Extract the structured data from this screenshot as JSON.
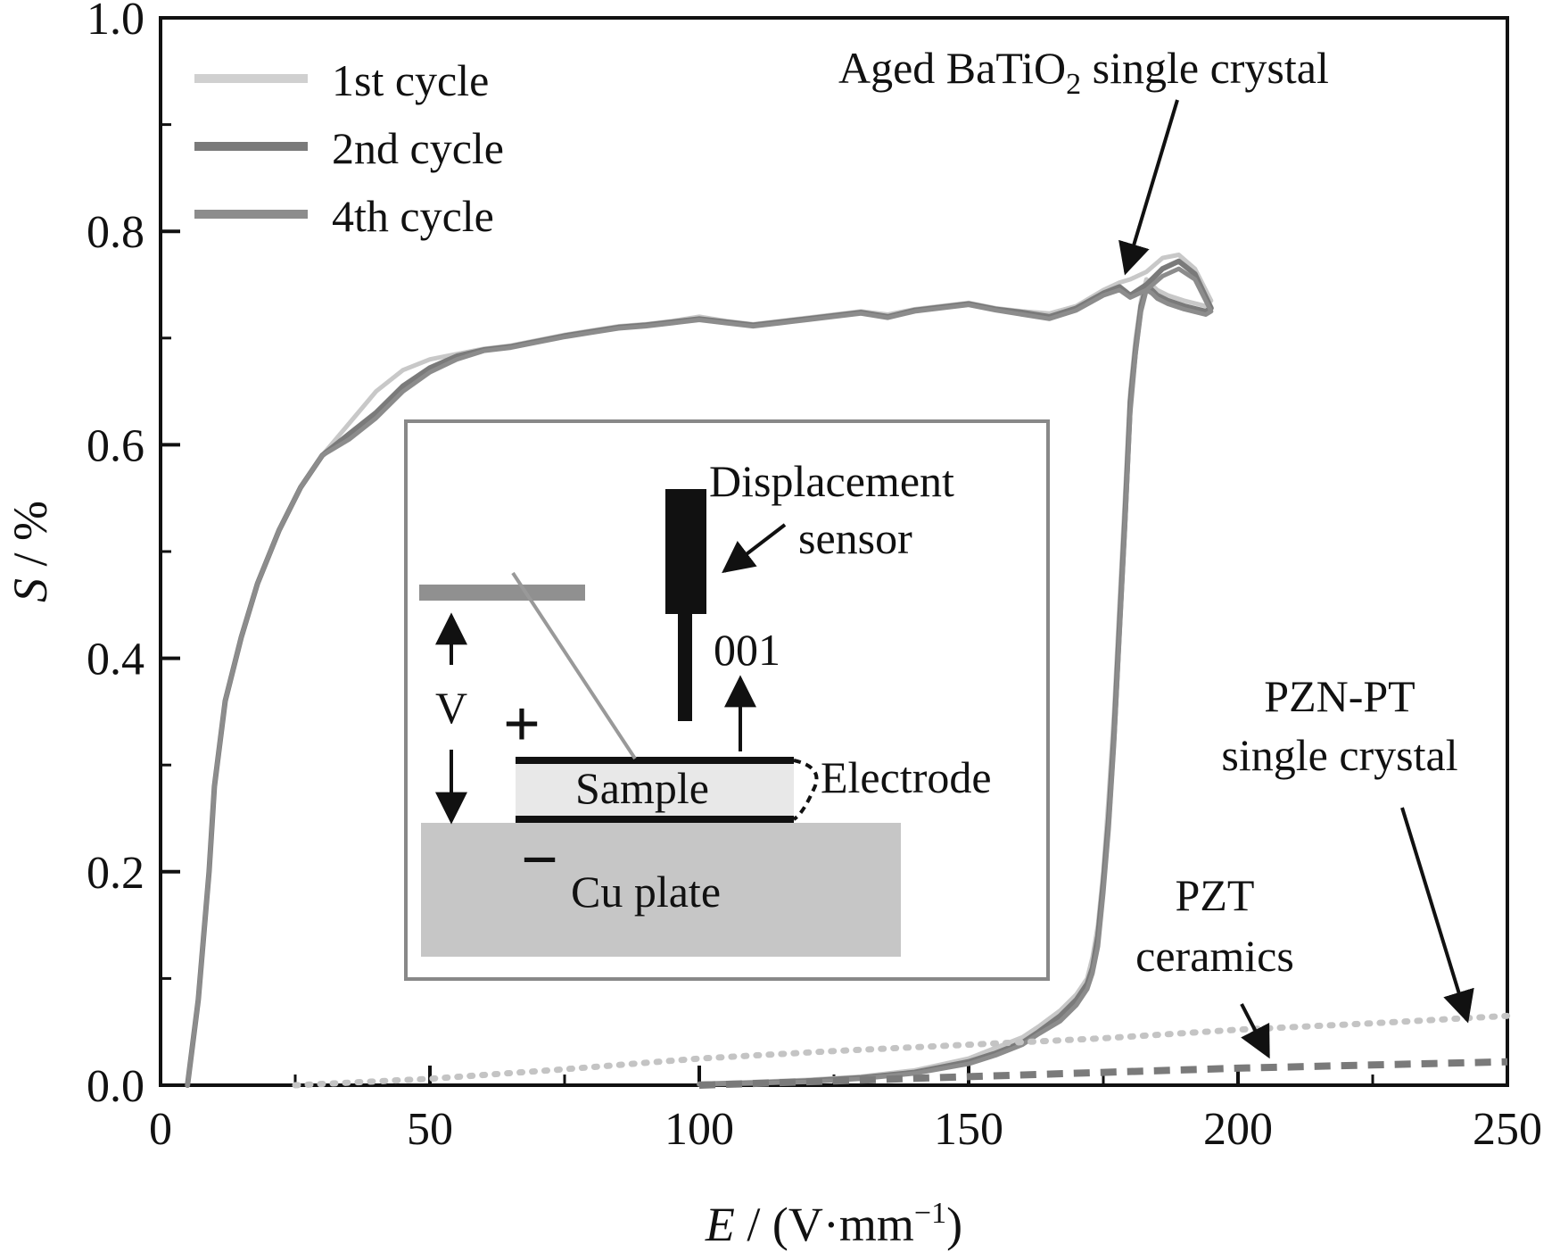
{
  "chart_data": {
    "type": "line",
    "xlabel_italic": "E",
    "xlabel_rest": " / (V·mm",
    "xlabel_sup": "−1",
    "xlabel_close": ")",
    "ylabel_italic": "S",
    "ylabel_rest": " / %",
    "xlim": [
      0,
      250
    ],
    "ylim": [
      0,
      1.0
    ],
    "xticks": [
      0,
      50,
      100,
      150,
      200,
      250
    ],
    "xtick_labels": [
      "0",
      "50",
      "100",
      "150",
      "200",
      "250"
    ],
    "yticks": [
      0,
      0.2,
      0.4,
      0.6,
      0.8,
      1.0
    ],
    "ytick_labels": [
      "0.0",
      "0.2",
      "0.4",
      "0.6",
      "0.8",
      "1.0"
    ],
    "grid": false,
    "legend_position": "top-left",
    "series": [
      {
        "name": "1st cycle",
        "color": "#c8c8c8",
        "x": [
          5,
          7,
          9,
          10,
          12,
          15,
          18,
          22,
          26,
          30,
          35,
          40,
          45,
          50,
          55,
          60,
          65,
          70,
          75,
          80,
          85,
          90,
          95,
          100,
          105,
          110,
          115,
          120,
          125,
          130,
          135,
          140,
          145,
          150,
          155,
          160,
          165,
          170,
          175,
          178,
          180,
          183,
          186,
          189,
          192,
          195,
          194,
          190,
          187,
          185,
          184,
          183,
          182,
          181,
          180,
          179,
          178,
          177,
          176,
          175,
          174,
          173,
          172,
          170,
          167,
          163,
          160,
          155,
          150,
          140,
          130,
          120,
          110,
          100
        ],
        "y": [
          0.0,
          0.08,
          0.2,
          0.28,
          0.36,
          0.42,
          0.47,
          0.52,
          0.56,
          0.59,
          0.62,
          0.65,
          0.67,
          0.68,
          0.685,
          0.69,
          0.693,
          0.698,
          0.703,
          0.707,
          0.711,
          0.713,
          0.716,
          0.72,
          0.716,
          0.713,
          0.716,
          0.719,
          0.722,
          0.725,
          0.722,
          0.727,
          0.73,
          0.733,
          0.728,
          0.725,
          0.723,
          0.73,
          0.745,
          0.752,
          0.755,
          0.762,
          0.775,
          0.778,
          0.765,
          0.735,
          0.73,
          0.735,
          0.74,
          0.745,
          0.75,
          0.755,
          0.735,
          0.7,
          0.65,
          0.55,
          0.45,
          0.35,
          0.27,
          0.2,
          0.15,
          0.12,
          0.1,
          0.085,
          0.07,
          0.055,
          0.045,
          0.035,
          0.025,
          0.014,
          0.008,
          0.005,
          0.003,
          0.001
        ]
      },
      {
        "name": "2nd cycle",
        "color": "#7a7a7a",
        "x": [
          5,
          7,
          9,
          10,
          12,
          15,
          18,
          22,
          26,
          30,
          35,
          40,
          45,
          50,
          55,
          60,
          65,
          70,
          75,
          80,
          85,
          90,
          95,
          100,
          105,
          110,
          115,
          120,
          125,
          130,
          135,
          140,
          145,
          150,
          155,
          160,
          165,
          170,
          175,
          178,
          180,
          183,
          186,
          189,
          192,
          195,
          194,
          190,
          187,
          185,
          184,
          183,
          182,
          181,
          180,
          179,
          178,
          177,
          176,
          175,
          174,
          173,
          172,
          170,
          167,
          163,
          160,
          155,
          150,
          140,
          130,
          120,
          110,
          100
        ],
        "y": [
          0.0,
          0.08,
          0.2,
          0.28,
          0.36,
          0.42,
          0.47,
          0.52,
          0.56,
          0.59,
          0.61,
          0.63,
          0.655,
          0.672,
          0.683,
          0.689,
          0.692,
          0.697,
          0.702,
          0.706,
          0.71,
          0.712,
          0.715,
          0.718,
          0.715,
          0.712,
          0.715,
          0.718,
          0.721,
          0.724,
          0.72,
          0.726,
          0.729,
          0.732,
          0.727,
          0.724,
          0.72,
          0.728,
          0.742,
          0.748,
          0.74,
          0.75,
          0.765,
          0.772,
          0.76,
          0.728,
          0.725,
          0.73,
          0.735,
          0.74,
          0.745,
          0.748,
          0.73,
          0.69,
          0.64,
          0.53,
          0.43,
          0.33,
          0.25,
          0.19,
          0.14,
          0.11,
          0.095,
          0.08,
          0.065,
          0.05,
          0.04,
          0.03,
          0.022,
          0.012,
          0.007,
          0.004,
          0.002,
          0.001
        ]
      },
      {
        "name": "4th cycle",
        "color": "#8c8c8c",
        "x": [
          5,
          7,
          9,
          10,
          12,
          15,
          18,
          22,
          26,
          30,
          35,
          40,
          45,
          50,
          55,
          60,
          65,
          70,
          75,
          80,
          85,
          90,
          95,
          100,
          105,
          110,
          115,
          120,
          125,
          130,
          135,
          140,
          145,
          150,
          155,
          160,
          165,
          170,
          175,
          178,
          180,
          183,
          186,
          189,
          192,
          195,
          194,
          190,
          187,
          185,
          184,
          183,
          182,
          181,
          180,
          179,
          178,
          177,
          176,
          175,
          174,
          173,
          172,
          170,
          167,
          163,
          160,
          155,
          150,
          140,
          130,
          120,
          110,
          100
        ],
        "y": [
          0.0,
          0.08,
          0.2,
          0.28,
          0.36,
          0.42,
          0.47,
          0.52,
          0.56,
          0.59,
          0.605,
          0.625,
          0.65,
          0.668,
          0.68,
          0.688,
          0.691,
          0.696,
          0.701,
          0.705,
          0.709,
          0.711,
          0.714,
          0.717,
          0.714,
          0.711,
          0.714,
          0.717,
          0.72,
          0.723,
          0.719,
          0.725,
          0.728,
          0.731,
          0.726,
          0.722,
          0.718,
          0.726,
          0.74,
          0.745,
          0.738,
          0.745,
          0.758,
          0.765,
          0.755,
          0.725,
          0.722,
          0.727,
          0.732,
          0.737,
          0.742,
          0.745,
          0.725,
          0.685,
          0.63,
          0.52,
          0.42,
          0.32,
          0.24,
          0.18,
          0.13,
          0.105,
          0.09,
          0.075,
          0.06,
          0.048,
          0.038,
          0.028,
          0.02,
          0.011,
          0.006,
          0.003,
          0.002,
          0.001
        ]
      },
      {
        "name": "",
        "color": "#c4c4c4",
        "dash": "dotted",
        "x": [
          25,
          50,
          75,
          100,
          125,
          150,
          175,
          200,
          225,
          250
        ],
        "y": [
          0.0,
          0.006,
          0.015,
          0.025,
          0.032,
          0.038,
          0.044,
          0.052,
          0.058,
          0.065
        ]
      },
      {
        "name": "",
        "color": "#7a7a7a",
        "dash": "dashed",
        "x": [
          100,
          125,
          150,
          175,
          200,
          225,
          250
        ],
        "y": [
          0.0,
          0.004,
          0.008,
          0.012,
          0.016,
          0.019,
          0.022
        ]
      }
    ],
    "annotations": {
      "batio3_pre": "Aged BaTiO",
      "batio3_sub": "2",
      "batio3_post": " single crystal",
      "pznpt_line1": "PZN-PT",
      "pznpt_line2": "single crystal",
      "pzt_line1": "PZT",
      "pzt_line2": "ceramics"
    },
    "inset": {
      "displacement_line1": "Displacement",
      "displacement_line2": "sensor",
      "direction": "001",
      "voltage": "V",
      "plus": "+",
      "minus": "−",
      "sample": "Sample",
      "electrode": "Electrode",
      "cu_plate": "Cu plate"
    }
  }
}
